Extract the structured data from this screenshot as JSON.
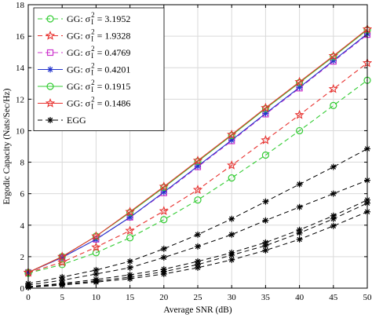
{
  "chart_data": {
    "type": "line",
    "xlabel": "Average SNR (dB)",
    "ylabel": "Ergodic Capacity (Nats/Sec/Hz)",
    "xlim": [
      0,
      50
    ],
    "ylim": [
      0,
      18
    ],
    "x_ticks": [
      0,
      5,
      10,
      15,
      20,
      25,
      30,
      35,
      40,
      45,
      50
    ],
    "y_ticks": [
      0,
      2,
      4,
      6,
      8,
      10,
      12,
      14,
      16,
      18
    ],
    "grid": true,
    "legend_position": "top-left",
    "x": [
      0,
      5,
      10,
      15,
      20,
      25,
      30,
      35,
      40,
      45,
      50
    ],
    "series": [
      {
        "name": "GG: σI2 = 3.1952",
        "prefix": "GG: σ",
        "sub": "I",
        "sup": "2",
        "suffix": " = 3.1952",
        "color": "#33cc33",
        "dash": "dashed",
        "marker": "circle",
        "values": [
          0.95,
          1.5,
          2.25,
          3.2,
          4.35,
          5.6,
          7.0,
          8.45,
          10.0,
          11.6,
          13.2
        ]
      },
      {
        "name": "GG: σI2 = 1.9328",
        "prefix": "GG: σ",
        "sub": "I",
        "sup": "2",
        "suffix": " = 1.9328",
        "color": "#e8322f",
        "dash": "dashed",
        "marker": "star",
        "values": [
          0.98,
          1.65,
          2.6,
          3.65,
          4.9,
          6.25,
          7.8,
          9.4,
          11.0,
          12.65,
          14.3
        ]
      },
      {
        "name": "GG: σI2 = 0.4769",
        "prefix": "GG: σ",
        "sub": "I",
        "sup": "2",
        "suffix": " = 0.4769",
        "color": "#cc33cc",
        "dash": "dashed",
        "marker": "square",
        "values": [
          1.0,
          1.95,
          3.1,
          4.5,
          6.05,
          7.7,
          9.35,
          11.05,
          12.7,
          14.4,
          16.1
        ]
      },
      {
        "name": "GG: σI2 = 0.4201",
        "prefix": "GG: σ",
        "sub": "I",
        "sup": "2",
        "suffix": " = 0.4201",
        "color": "#2233cc",
        "dash": "solid",
        "marker": "asterisk",
        "values": [
          1.0,
          1.95,
          3.1,
          4.5,
          6.1,
          7.75,
          9.4,
          11.1,
          12.75,
          14.45,
          16.15
        ]
      },
      {
        "name": "GG: σI2 = 0.1915",
        "prefix": "GG: σ",
        "sub": "I",
        "sup": "2",
        "suffix": " = 0.1915",
        "color": "#33cc33",
        "dash": "solid",
        "marker": "circle",
        "values": [
          1.0,
          2.0,
          3.3,
          4.8,
          6.4,
          8.05,
          9.7,
          11.4,
          13.05,
          14.7,
          16.4
        ]
      },
      {
        "name": "GG: σI2 = 0.1486",
        "prefix": "GG: σ",
        "sub": "I",
        "sup": "2",
        "suffix": " = 0.1486",
        "color": "#e8322f",
        "dash": "solid",
        "marker": "star",
        "values": [
          1.0,
          2.0,
          3.3,
          4.85,
          6.45,
          8.1,
          9.75,
          11.45,
          13.1,
          14.75,
          16.45
        ]
      }
    ],
    "egg_legend": {
      "label": "EGG",
      "color": "#000000"
    },
    "egg_curves": [
      [
        0.3,
        0.7,
        1.15,
        1.7,
        2.5,
        3.4,
        4.4,
        5.5,
        6.6,
        7.7,
        8.85
      ],
      [
        0.2,
        0.5,
        0.9,
        1.3,
        1.95,
        2.65,
        3.4,
        4.3,
        5.15,
        6.0,
        6.85
      ],
      [
        0.1,
        0.3,
        0.55,
        0.85,
        1.2,
        1.7,
        2.25,
        2.9,
        3.7,
        4.6,
        5.6
      ],
      [
        0.08,
        0.25,
        0.45,
        0.7,
        1.05,
        1.5,
        2.1,
        2.7,
        3.5,
        4.4,
        5.4
      ],
      [
        0.05,
        0.2,
        0.38,
        0.6,
        0.9,
        1.3,
        1.8,
        2.4,
        3.1,
        3.95,
        4.85
      ]
    ]
  }
}
